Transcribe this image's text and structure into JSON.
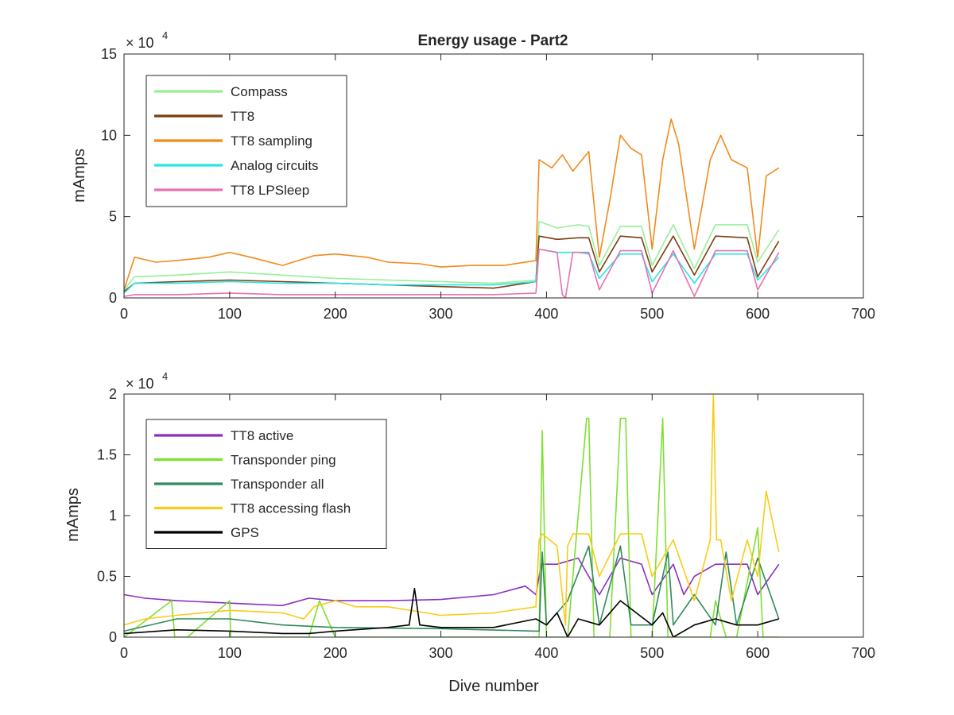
{
  "chart_data": [
    {
      "type": "line",
      "title": "Energy usage - Part2",
      "xlabel": "",
      "ylabel": "mAmps",
      "xlim": [
        0,
        700
      ],
      "ylim": [
        0,
        150000
      ],
      "xticks": [
        "0",
        "100",
        "200",
        "300",
        "400",
        "500",
        "600",
        "700"
      ],
      "yticks": [
        "0",
        "5",
        "10",
        "15"
      ],
      "exponent_base": "× 10",
      "exponent_power": "4",
      "legend_location": "top-left",
      "series": [
        {
          "name": "Compass",
          "color": "#98ef98",
          "x": [
            0,
            10,
            50,
            100,
            150,
            200,
            250,
            300,
            350,
            390,
            393,
            410,
            430,
            440,
            450,
            470,
            490,
            500,
            520,
            540,
            560,
            590,
            600,
            620
          ],
          "values": [
            5000,
            13000,
            14000,
            16000,
            14000,
            12000,
            11000,
            10000,
            9000,
            11000,
            47000,
            43000,
            45000,
            44000,
            20000,
            44000,
            44000,
            20000,
            45000,
            18000,
            45000,
            45000,
            22000,
            42000
          ]
        },
        {
          "name": "TT8",
          "color": "#7b3d10",
          "x": [
            0,
            10,
            50,
            100,
            150,
            200,
            250,
            300,
            350,
            390,
            393,
            410,
            430,
            440,
            450,
            470,
            490,
            500,
            520,
            540,
            560,
            590,
            600,
            620
          ],
          "values": [
            4000,
            9000,
            10000,
            11000,
            10000,
            9000,
            8000,
            7000,
            6000,
            10000,
            38000,
            36000,
            37000,
            37000,
            16000,
            38000,
            37000,
            16000,
            38000,
            14000,
            38000,
            37000,
            13000,
            35000
          ]
        },
        {
          "name": "TT8 sampling",
          "color": "#f28a1b",
          "x": [
            0,
            10,
            30,
            50,
            80,
            100,
            120,
            150,
            180,
            200,
            230,
            250,
            280,
            300,
            330,
            360,
            390,
            393,
            405,
            415,
            425,
            440,
            450,
            460,
            470,
            480,
            490,
            500,
            510,
            518,
            525,
            540,
            555,
            565,
            575,
            590,
            600,
            608,
            620
          ],
          "values": [
            5000,
            25000,
            22000,
            23000,
            25000,
            28000,
            25000,
            20000,
            26000,
            27000,
            25000,
            22000,
            21000,
            19000,
            20000,
            20000,
            23000,
            85000,
            80000,
            88000,
            78000,
            90000,
            25000,
            60000,
            100000,
            92000,
            88000,
            30000,
            85000,
            110000,
            95000,
            30000,
            85000,
            100000,
            85000,
            80000,
            25000,
            75000,
            80000
          ]
        },
        {
          "name": "Analog circuits",
          "color": "#28e6e6",
          "x": [
            0,
            10,
            50,
            100,
            150,
            200,
            250,
            300,
            350,
            390,
            393,
            410,
            430,
            440,
            450,
            470,
            490,
            500,
            520,
            540,
            560,
            590,
            600,
            620
          ],
          "values": [
            3000,
            9000,
            9000,
            10000,
            9000,
            9000,
            8000,
            8000,
            8000,
            10000,
            30000,
            28000,
            28000,
            27000,
            12000,
            27000,
            27000,
            10000,
            27000,
            9000,
            27000,
            27000,
            11000,
            25000
          ]
        },
        {
          "name": "TT8 LPSleep",
          "color": "#e870b0",
          "x": [
            0,
            10,
            50,
            100,
            150,
            200,
            250,
            300,
            350,
            390,
            393,
            410,
            415,
            418,
            425,
            440,
            450,
            470,
            490,
            500,
            520,
            540,
            560,
            590,
            600,
            620
          ],
          "values": [
            1000,
            2000,
            2000,
            3000,
            2000,
            2000,
            2000,
            2000,
            2000,
            3000,
            30000,
            28000,
            2000,
            0,
            28000,
            28000,
            5000,
            29000,
            29000,
            3000,
            29000,
            1000,
            29000,
            29000,
            5000,
            28000
          ]
        }
      ]
    },
    {
      "type": "line",
      "title": "",
      "xlabel": "Dive number",
      "ylabel": "mAmps",
      "xlim": [
        0,
        700
      ],
      "ylim": [
        0,
        20000
      ],
      "xticks": [
        "0",
        "100",
        "200",
        "300",
        "400",
        "500",
        "600",
        "700"
      ],
      "yticks": [
        "0",
        "0.5",
        "1",
        "1.5",
        "2"
      ],
      "exponent_base": "× 10",
      "exponent_power": "4",
      "legend_location": "top-left",
      "series": [
        {
          "name": "TT8 active",
          "color": "#8b2fc2",
          "x": [
            0,
            20,
            50,
            100,
            150,
            175,
            200,
            250,
            300,
            350,
            380,
            390,
            395,
            410,
            430,
            450,
            470,
            490,
            500,
            520,
            530,
            540,
            560,
            590,
            600,
            620
          ],
          "values": [
            3500,
            3200,
            3000,
            2800,
            2600,
            3200,
            3000,
            3000,
            3100,
            3500,
            4200,
            3500,
            6000,
            6000,
            6500,
            3500,
            6500,
            6000,
            3500,
            6000,
            3500,
            5000,
            6000,
            6000,
            3500,
            6000
          ]
        },
        {
          "name": "Transponder ping",
          "color": "#7ee030",
          "x": [
            0,
            45,
            48,
            60,
            100,
            101,
            150,
            175,
            185,
            200,
            300,
            390,
            393,
            396,
            400,
            405,
            420,
            438,
            440,
            445,
            460,
            470,
            475,
            480,
            500,
            510,
            515,
            520,
            540,
            555,
            560,
            570,
            580,
            600,
            605,
            620
          ],
          "values": [
            0,
            3000,
            0,
            0,
            3000,
            0,
            0,
            0,
            3000,
            0,
            0,
            0,
            0,
            17000,
            0,
            0,
            0,
            18000,
            18000,
            0,
            0,
            18000,
            18000,
            0,
            0,
            18000,
            0,
            0,
            0,
            0,
            3000,
            0,
            0,
            9000,
            0,
            0
          ]
        },
        {
          "name": "Transponder all",
          "color": "#2f8a5a",
          "x": [
            0,
            50,
            100,
            150,
            200,
            300,
            390,
            393,
            396,
            400,
            420,
            440,
            450,
            470,
            480,
            500,
            515,
            520,
            540,
            560,
            570,
            580,
            600,
            620
          ],
          "values": [
            500,
            1500,
            1500,
            1000,
            800,
            700,
            500,
            500,
            7000,
            1000,
            3000,
            7500,
            1000,
            7500,
            1000,
            1000,
            7000,
            1000,
            3500,
            1000,
            7000,
            1000,
            6500,
            1500
          ]
        },
        {
          "name": "TT8 accessing flash",
          "color": "#f7cc15",
          "x": [
            0,
            20,
            50,
            100,
            150,
            170,
            180,
            200,
            220,
            250,
            300,
            350,
            390,
            393,
            396,
            410,
            418,
            420,
            425,
            440,
            450,
            470,
            490,
            500,
            520,
            540,
            555,
            558,
            561,
            565,
            575,
            590,
            600,
            608,
            620
          ],
          "values": [
            1000,
            1500,
            1800,
            2200,
            2000,
            1500,
            2500,
            3000,
            2500,
            2500,
            1800,
            2000,
            2500,
            8000,
            8500,
            7500,
            1000,
            7500,
            8500,
            8500,
            5000,
            8500,
            8500,
            5000,
            8000,
            3000,
            8000,
            20000,
            8000,
            8000,
            3000,
            8000,
            5000,
            12000,
            7000
          ]
        },
        {
          "name": "GPS",
          "color": "#000000",
          "x": [
            0,
            50,
            100,
            150,
            175,
            200,
            250,
            270,
            275,
            280,
            300,
            350,
            390,
            400,
            410,
            415,
            420,
            430,
            450,
            470,
            500,
            510,
            520,
            540,
            560,
            580,
            600,
            620
          ],
          "values": [
            300,
            600,
            500,
            300,
            300,
            500,
            800,
            1000,
            4000,
            1000,
            800,
            800,
            1500,
            1000,
            2000,
            1000,
            0,
            1500,
            1000,
            3000,
            1000,
            2000,
            0,
            1000,
            1500,
            1000,
            1000,
            1500
          ]
        }
      ]
    }
  ]
}
